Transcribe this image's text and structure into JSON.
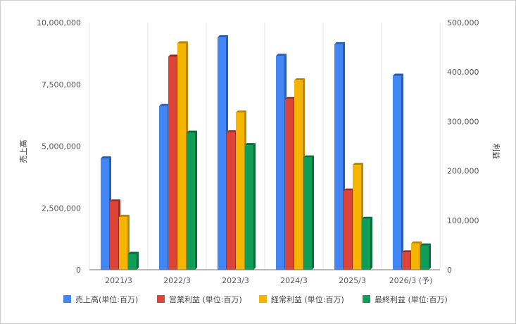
{
  "chart_data": {
    "type": "bar",
    "categories": [
      "2021/3",
      "2022/3",
      "2023/3",
      "2024/3",
      "2025/3",
      "2026/3 (予)"
    ],
    "left_axis": {
      "title": "売上高",
      "range": [
        0,
        10000000
      ],
      "ticks": [
        "0",
        "2,500,000",
        "5,000,000",
        "7,500,000",
        "10,000,000"
      ],
      "tick_values": [
        0,
        2500000,
        5000000,
        7500000,
        10000000
      ]
    },
    "right_axis": {
      "title": "利益",
      "range": [
        0,
        500000
      ],
      "ticks": [
        "0",
        "100,000",
        "200,000",
        "300,000",
        "400,000",
        "500,000"
      ],
      "tick_values": [
        0,
        100000,
        200000,
        300000,
        400000,
        500000
      ]
    },
    "series": [
      {
        "name": "売上高(単位:百万)",
        "axis": "left",
        "color": "#4285f4",
        "shade": "#2a5db0",
        "values": [
          4500000,
          6620000,
          9400000,
          8650000,
          9120000,
          7850000
        ]
      },
      {
        "name": "営業利益 (単位:百万)",
        "axis": "right",
        "color": "#db4437",
        "shade": "#9e2b22",
        "values": [
          138000,
          431000,
          278000,
          345000,
          160000,
          35000
        ]
      },
      {
        "name": "経常利益 (単位:百万)",
        "axis": "right",
        "color": "#f4b400",
        "shade": "#b88600",
        "values": [
          107000,
          458000,
          318000,
          383000,
          212000,
          53000
        ]
      },
      {
        "name": "最終利益 (単位:百万)",
        "axis": "right",
        "color": "#0f9d58",
        "shade": "#0a6b3b",
        "values": [
          32000,
          277000,
          252000,
          227000,
          103000,
          49000
        ]
      }
    ],
    "gridlines": "vertical-only",
    "legend_position": "bottom"
  }
}
